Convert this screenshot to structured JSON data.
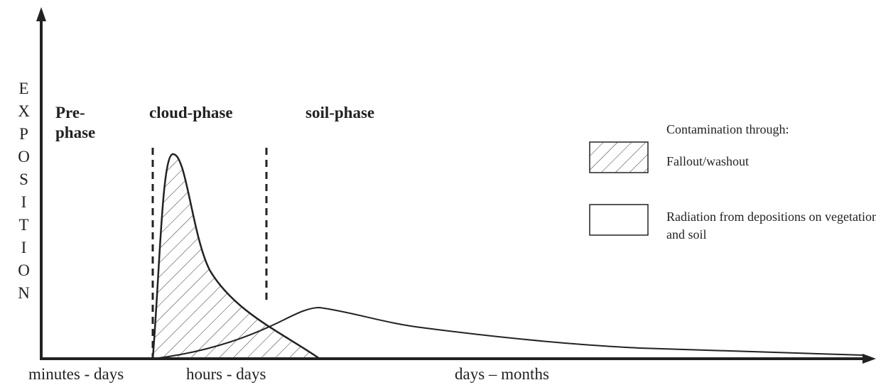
{
  "y_axis_label": "EXPOSITION",
  "phases": {
    "pre": [
      "Pre-",
      "phase"
    ],
    "cloud": "cloud-phase",
    "soil": "soil-phase"
  },
  "legend": {
    "title": "Contamination through:",
    "items": [
      "Fallout/washout",
      "Radiation from depositions on vegetation and soil"
    ]
  },
  "x_labels": [
    "minutes - days",
    "hours - days",
    "days – months"
  ]
}
